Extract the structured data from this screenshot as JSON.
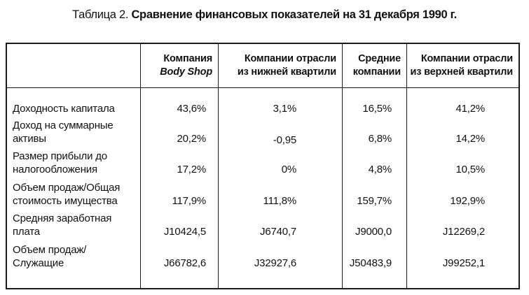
{
  "caption": {
    "label": "Таблица 2.",
    "title": "Сравнение финансовых показателей на 31 декабря 1990 г."
  },
  "headers": [
    {
      "line1": "Компания",
      "line2": "Body Shop"
    },
    {
      "line1": "Компании отрасли",
      "line2": "из нижней квартили"
    },
    {
      "line1": "Средние",
      "line2": "компании"
    },
    {
      "line1": "Компании отрасли",
      "line2": "из верхней квартили"
    }
  ],
  "rows": [
    {
      "label": [
        "Доходность капитала"
      ],
      "values": [
        "43,6%",
        "3,1%",
        "16,5%",
        "41,2%"
      ]
    },
    {
      "label": [
        "Доход на суммарные",
        "активы"
      ],
      "values": [
        "20,2%",
        "-0,95",
        "6,8%",
        "14,2%"
      ]
    },
    {
      "label": [
        "Размер прибыли до",
        "налогообложения"
      ],
      "values": [
        "17,2%",
        "0%",
        "4,8%",
        "10,5%"
      ]
    },
    {
      "label": [
        "Объем продаж/Общая",
        "стоимость имущества"
      ],
      "values": [
        "117,9%",
        "111,8%",
        "159,7%",
        "192,9%"
      ]
    },
    {
      "label": [
        "Средняя заработная",
        "плата"
      ],
      "values": [
        "J10424,5",
        "J6740,7",
        "J9000,0",
        "J12269,2"
      ]
    },
    {
      "label": [
        "Объем продаж/",
        "Служащие"
      ],
      "values": [
        "J66782,6",
        "J32927,6",
        "J50483,9",
        "J99252,1"
      ]
    }
  ]
}
